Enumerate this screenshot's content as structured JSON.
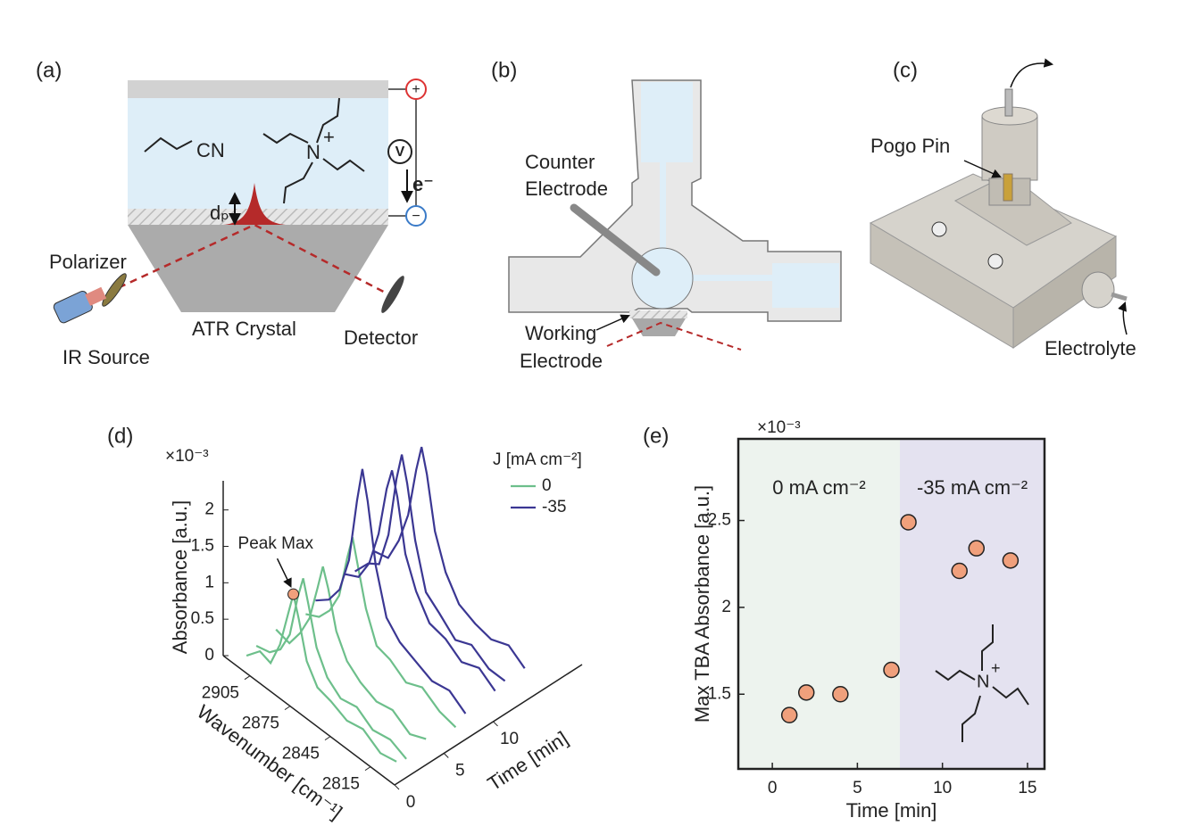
{
  "diagrams": {
    "a": {
      "label": "(a)",
      "polarizer": "Polarizer",
      "ir_source": "IR Source",
      "crystal": "ATR Crystal",
      "detector": "Detector",
      "depth": "dₚ",
      "nitrile": "CN",
      "nitrogen": "N",
      "charge": "+",
      "voltmeter": "V",
      "electron": "e⁻",
      "anode": "+",
      "cathode": "−"
    },
    "b": {
      "label": "(b)",
      "counter": [
        "Counter",
        "Electrode"
      ],
      "working": [
        "Working",
        "Electrode"
      ]
    },
    "c": {
      "label": "(c)",
      "pin": "Pogo Pin",
      "electrolyte": "Electrolyte"
    }
  },
  "chart_data": [
    {
      "type": "waterfall",
      "label": "(d)",
      "multiplier": "×10⁻³",
      "xlabel": "Wavenumber [cm⁻¹]",
      "ylabel": "Time [min]",
      "zlabel": "Absorbance [a.u.]",
      "legend_title": "J [mA cm⁻²]",
      "annotation": "Peak Max",
      "wavenumbers": [
        2915,
        2905,
        2897,
        2890,
        2884,
        2880,
        2876,
        2870,
        2862,
        2852,
        2840,
        2828,
        2815,
        2803
      ],
      "series": [
        {
          "name": "0",
          "color": "#6dbf8b",
          "curves": [
            {
              "time": 1,
              "values": [
                0.05,
                0.25,
                0.2,
                0.55,
                1.05,
                1.38,
                1.1,
                0.6,
                0.35,
                0.3,
                0.2,
                0.25,
                0.1,
                0.15
              ]
            },
            {
              "time": 2,
              "values": [
                0.1,
                0.15,
                0.3,
                0.6,
                1.2,
                1.51,
                1.2,
                0.7,
                0.4,
                0.25,
                0.3,
                0.15,
                0.2,
                0.1
              ]
            },
            {
              "time": 4,
              "values": [
                0.15,
                0.1,
                0.35,
                0.65,
                1.15,
                1.5,
                1.25,
                0.75,
                0.45,
                0.3,
                0.2,
                0.25,
                0.1,
                0.2
              ]
            },
            {
              "time": 7,
              "values": [
                0.1,
                0.2,
                0.4,
                0.7,
                1.3,
                1.64,
                1.3,
                0.8,
                0.4,
                0.35,
                0.2,
                0.3,
                0.15,
                0.1
              ]
            }
          ]
        },
        {
          "name": "-35",
          "color": "#3b3793",
          "curves": [
            {
              "time": 8,
              "values": [
                0.2,
                0.35,
                0.6,
                1.1,
                2.0,
                2.49,
                2.1,
                1.3,
                0.7,
                0.5,
                0.4,
                0.3,
                0.35,
                0.2
              ]
            },
            {
              "time": 11,
              "values": [
                0.3,
                0.4,
                0.7,
                1.2,
                1.9,
                2.21,
                1.9,
                1.2,
                0.8,
                0.5,
                0.45,
                0.3,
                0.4,
                0.25
              ]
            },
            {
              "time": 12,
              "values": [
                0.25,
                0.5,
                0.6,
                1.1,
                1.95,
                2.34,
                2.0,
                1.3,
                0.7,
                0.55,
                0.35,
                0.45,
                0.3,
                0.3
              ]
            },
            {
              "time": 14,
              "values": [
                0.35,
                0.4,
                0.75,
                1.2,
                1.9,
                2.27,
                1.95,
                1.25,
                0.8,
                0.5,
                0.4,
                0.35,
                0.45,
                0.3
              ]
            }
          ]
        }
      ],
      "xlim": [
        2925,
        2797
      ],
      "xticks": [
        2905,
        2875,
        2845,
        2815
      ],
      "ylim": [
        0,
        19
      ],
      "yticks": [
        0,
        5,
        10
      ],
      "zlim": [
        0,
        2.4
      ],
      "zticks": [
        0,
        0.5,
        1,
        1.5,
        2
      ]
    },
    {
      "type": "scatter",
      "label": "(e)",
      "multiplier": "×10⁻³",
      "xlabel": "Time [min]",
      "ylabel": "Max TBA Absorbance [a.u.]",
      "x": [
        1,
        2,
        4,
        7,
        8,
        11,
        12,
        14
      ],
      "values": [
        1.38,
        1.51,
        1.5,
        1.64,
        2.49,
        2.21,
        2.34,
        2.27
      ],
      "color": "#f0a07c",
      "regions": [
        {
          "label": "0 mA cm⁻²",
          "from": -2,
          "to": 7.5,
          "color": "#edf3ee"
        },
        {
          "label": "-35 mA cm⁻²",
          "from": 7.5,
          "to": 16,
          "color": "#e4e2f0"
        }
      ],
      "molecule": {
        "nitrogen": "N",
        "charge": "+"
      },
      "xlim": [
        -2,
        16
      ],
      "xticks": [
        0,
        5,
        10,
        15
      ],
      "ylim": [
        1.07,
        2.97
      ],
      "yticks": [
        1.5,
        2,
        2.5
      ]
    }
  ]
}
